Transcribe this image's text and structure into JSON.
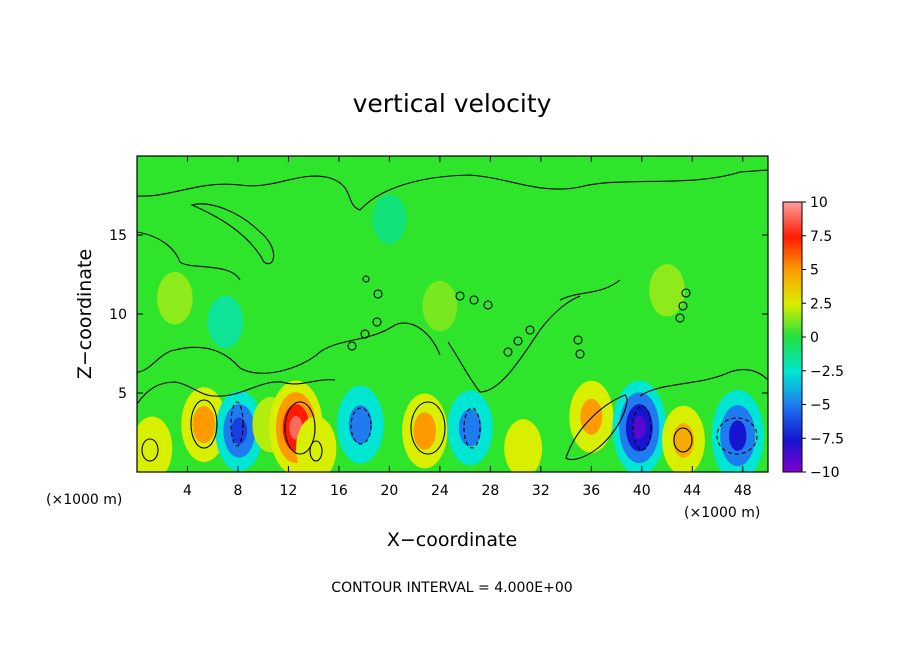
{
  "chart_data": {
    "type": "heatmap",
    "title": "vertical velocity",
    "xlabel": "X−coordinate",
    "ylabel": "Z−coordinate",
    "x_unit": "(×1000 m)",
    "x_unit_right": "(×1000 m)",
    "xlim": [
      0,
      50
    ],
    "ylim": [
      0,
      20
    ],
    "x_ticks": [
      4,
      8,
      12,
      16,
      20,
      24,
      28,
      32,
      36,
      40,
      44,
      48
    ],
    "x_tick_labels": [
      "4",
      "8",
      "12",
      "16",
      "20",
      "24",
      "28",
      "32",
      "36",
      "40",
      "44",
      "48"
    ],
    "y_ticks": [
      5,
      10,
      15
    ],
    "y_tick_labels": [
      "5",
      "10",
      "15"
    ],
    "colorbar": {
      "min": -10,
      "max": 10,
      "ticks": [
        10,
        7.5,
        5,
        2.5,
        0,
        -2.5,
        -5,
        -7.5,
        -10
      ],
      "tick_labels": [
        "10",
        "7.5",
        "5",
        "2.5",
        "0",
        "−2.5",
        "−5",
        "−7.5",
        "−10"
      ]
    },
    "footnote": "CONTOUR INTERVAL = 4.000E+00",
    "features": [
      {
        "x": 1.2,
        "z": 1.5,
        "w": 3.5
      },
      {
        "x": 5.3,
        "z": 3.0,
        "w": 5.5
      },
      {
        "x": 8.1,
        "z": 2.6,
        "w": -6.5
      },
      {
        "x": 10.6,
        "z": 3.0,
        "w": 2.0
      },
      {
        "x": 12.6,
        "z": 2.8,
        "w": 9.0
      },
      {
        "x": 14.2,
        "z": 1.5,
        "w": 3.5
      },
      {
        "x": 17.7,
        "z": 3.0,
        "w": -6.0
      },
      {
        "x": 22.8,
        "z": 2.6,
        "w": 5.5
      },
      {
        "x": 26.4,
        "z": 2.8,
        "w": -5.5
      },
      {
        "x": 30.6,
        "z": 1.5,
        "w": 2.5
      },
      {
        "x": 36.0,
        "z": 3.5,
        "w": 5.0
      },
      {
        "x": 39.8,
        "z": 2.8,
        "w": -9.0
      },
      {
        "x": 43.3,
        "z": 2.0,
        "w": 4.5
      },
      {
        "x": 47.6,
        "z": 2.3,
        "w": -8.5
      },
      {
        "x": 3.0,
        "z": 11.0,
        "w": 1.5
      },
      {
        "x": 7.0,
        "z": 9.5,
        "w": -1.5
      },
      {
        "x": 24.0,
        "z": 10.5,
        "w": 1.2
      },
      {
        "x": 42.0,
        "z": 11.5,
        "w": 1.5
      },
      {
        "x": 20.0,
        "z": 16.0,
        "w": -1.0
      }
    ]
  }
}
